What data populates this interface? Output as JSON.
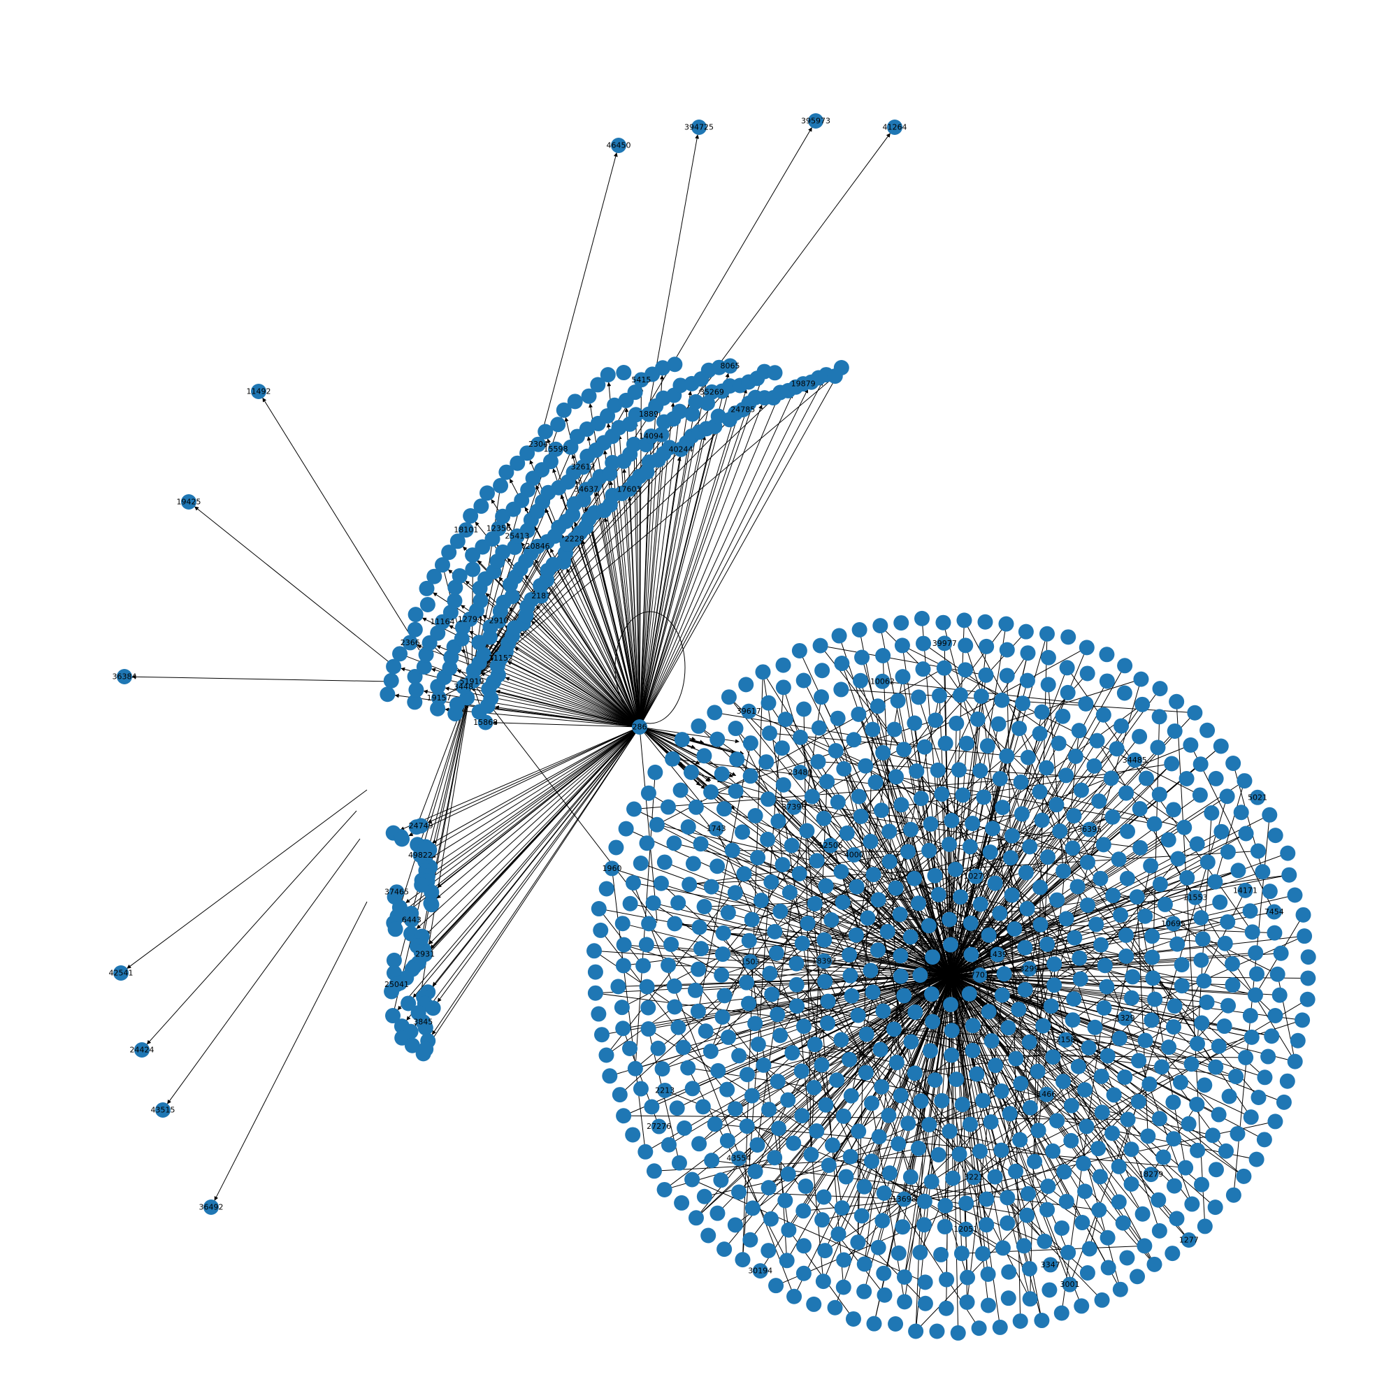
{
  "graph": {
    "node_color": "#1f77b4",
    "edge_color": "#000000",
    "hub": {
      "label": "286"
    },
    "left_hub": {
      "label": "51919"
    },
    "outer_nodes": [
      {
        "label": "46450"
      },
      {
        "label": "394725"
      },
      {
        "label": "395973"
      },
      {
        "label": "41264"
      },
      {
        "label": "11492"
      },
      {
        "label": "19425"
      },
      {
        "label": "36384"
      },
      {
        "label": "42541"
      },
      {
        "label": "24424"
      },
      {
        "label": "43515"
      },
      {
        "label": "36492"
      }
    ],
    "arc_labels": [
      "15868",
      "11152",
      "2187",
      "2228",
      "17601",
      "40244",
      "24785",
      "19879",
      "3448",
      "2910",
      "20846",
      "34637",
      "14094",
      "35269",
      "19157",
      "12794",
      "25413",
      "32612",
      "1889",
      "8065",
      "11164",
      "12356",
      "15598",
      "5415",
      "2366",
      "18101",
      "2304",
      "24749",
      "49822",
      "37465",
      "6443",
      "2931",
      "25041",
      "3845"
    ],
    "disk_labels": [
      "7701",
      "1439",
      "3299",
      "10270",
      "18397",
      "2158",
      "4000",
      "1466",
      "12506",
      "1329",
      "1503",
      "36395",
      "3221",
      "37396",
      "10695",
      "13698",
      "23480",
      "11553",
      "12051",
      "1743",
      "34485",
      "18279",
      "43554",
      "10062",
      "14171",
      "3347",
      "2213",
      "39977",
      "7454",
      "3001",
      "27276",
      "39617",
      "5021",
      "1277",
      "30194",
      "1960"
    ]
  }
}
